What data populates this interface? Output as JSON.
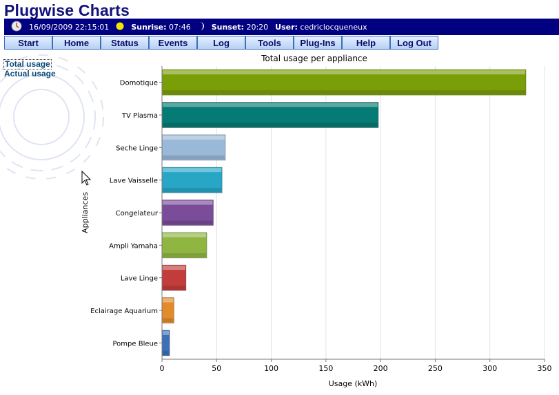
{
  "app": {
    "title": "Plugwise Charts"
  },
  "infobar": {
    "datetime": "16/09/2009 22:15:01",
    "sunrise_label": "Sunrise:",
    "sunrise_value": "07:46",
    "sunset_label": "Sunset:",
    "sunset_value": "20:20",
    "user_label": "User:",
    "user_value": "cedriclocqueneux",
    "icons": [
      "clock-icon",
      "sun-icon",
      "moon-icon"
    ]
  },
  "nav": [
    "Start",
    "Home",
    "Status",
    "Events",
    "Log",
    "Tools",
    "Plug-Ins",
    "Help",
    "Log Out"
  ],
  "sidebar": {
    "links": [
      "Total usage",
      "Actual usage"
    ],
    "active": "Total usage"
  },
  "colors": {
    "nav_bar": "#000080",
    "title": "#11117a"
  },
  "chart_data": {
    "type": "bar",
    "orientation": "horizontal",
    "title": "Total usage per appliance",
    "xlabel": "Usage (kWh)",
    "ylabel": "Appliances",
    "xlim": [
      0,
      350
    ],
    "xticks": [
      0,
      50,
      100,
      150,
      200,
      250,
      300,
      350
    ],
    "grid": true,
    "categories": [
      "Domotique",
      "TV Plasma",
      "Seche Linge",
      "Lave Vaisselle",
      "Congelateur",
      "Ampli Yamaha",
      "Lave Linge",
      "Eclairage Aquarium",
      "Pompe Bleue"
    ],
    "values": [
      333,
      198,
      58,
      55,
      47,
      41,
      22,
      11,
      7
    ],
    "colors": [
      "#7a9e08",
      "#067a74",
      "#9ab8d8",
      "#27a6c6",
      "#7b4c9a",
      "#90b642",
      "#c23c3c",
      "#e28a2c",
      "#3c70b8"
    ]
  }
}
